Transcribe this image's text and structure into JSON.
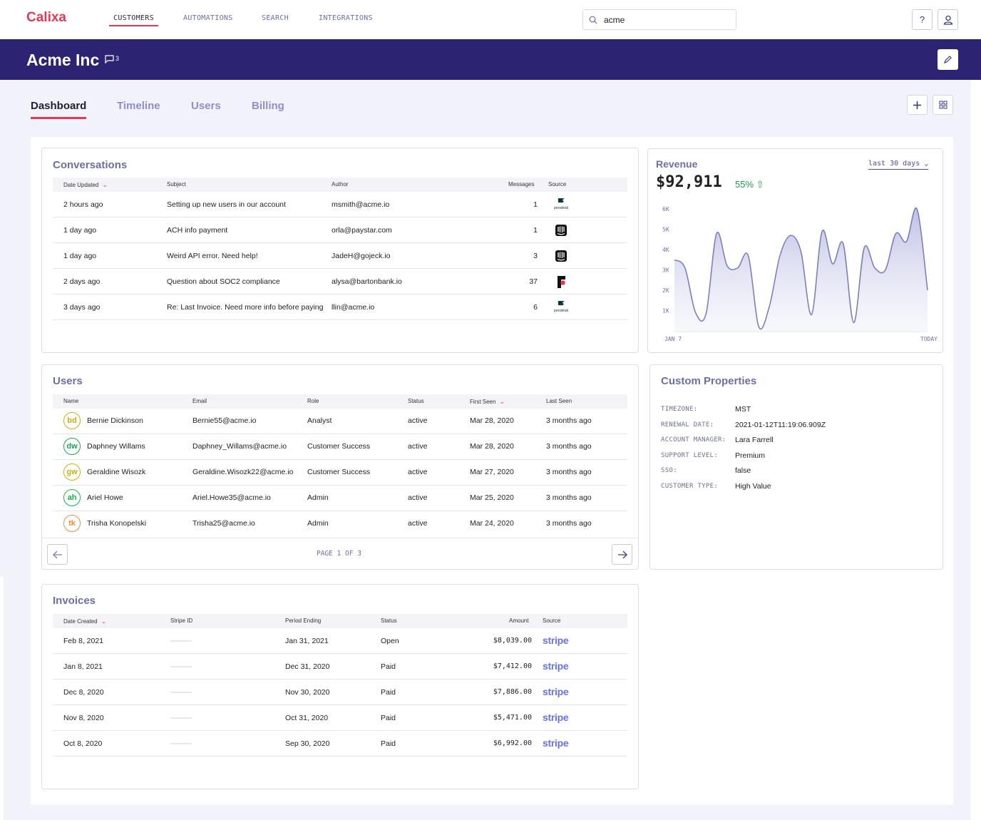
{
  "app": {
    "logo": "Calixa",
    "nav": [
      "CUSTOMERS",
      "AUTOMATIONS",
      "SEARCH",
      "INTEGRATIONS"
    ],
    "search_value": "acme",
    "help_label": "?"
  },
  "company": {
    "name": "Acme Inc",
    "comment_count": "3"
  },
  "tabs": [
    "Dashboard",
    "Timeline",
    "Users",
    "Billing"
  ],
  "conversations": {
    "title": "Conversations",
    "headers": [
      "Date Updated",
      "Subject",
      "Author",
      "Messages",
      "Source"
    ],
    "rows": [
      {
        "date": "2 hours ago",
        "subject": "Setting up new users in our account",
        "author": "msmith@acme.io",
        "messages": "1",
        "source": "zendesk"
      },
      {
        "date": "1 day ago",
        "subject": "ACH info payment",
        "author": "orla@paystar.com",
        "messages": "1",
        "source": "intercom"
      },
      {
        "date": "1 day ago",
        "subject": "Weird API error. Need help!",
        "author": "JadeH@gojeck.io",
        "messages": "3",
        "source": "intercom"
      },
      {
        "date": "2 days ago",
        "subject": "Question about SOC2 compliance",
        "author": "alysa@bartonbank.io",
        "messages": "37",
        "source": "front"
      },
      {
        "date": "3 days ago",
        "subject": "Re: Last Invoice. Need more info before paying",
        "author": "llin@acme.io",
        "messages": "6",
        "source": "zendesk"
      }
    ],
    "zendesk_label": "zendesk"
  },
  "revenue": {
    "title": "Revenue",
    "range": "last 30 days",
    "total": "$92,911",
    "change": "55%"
  },
  "chart_data": {
    "type": "area",
    "x_start_label": "JAN 7",
    "x_end_label": "TODAY",
    "yticks": [
      "6K",
      "5K",
      "4K",
      "3K",
      "2K",
      "1K"
    ],
    "ylim": [
      0,
      6500
    ],
    "values": [
      3500,
      3100,
      900,
      850,
      4800,
      3200,
      3100,
      3700,
      200,
      1200,
      3700,
      4700,
      3900,
      800,
      4900,
      3300,
      4300,
      400,
      4100,
      3100,
      3000,
      4800,
      4400,
      6000,
      2000
    ],
    "grid": false,
    "color": "#7c7fc0"
  },
  "users": {
    "title": "Users",
    "headers": [
      "Name",
      "Email",
      "Role",
      "Status",
      "First Seen",
      "Last Seen"
    ],
    "rows": [
      {
        "initials": "bd",
        "name": "Bernie Dickinson",
        "email": "Bernie55@acme.io",
        "role": "Analyst",
        "status": "active",
        "first_seen": "Mar 28, 2020",
        "last_seen": "3 months ago",
        "color": "#d8a80c"
      },
      {
        "initials": "dw",
        "name": "Daphney Willams",
        "email": "Daphney_Willams@acme.io",
        "role": "Customer Success",
        "status": "active",
        "first_seen": "Mar 28, 2020",
        "last_seen": "3 months ago",
        "color": "#1aa352"
      },
      {
        "initials": "gw",
        "name": "Geraldine Wisozk",
        "email": "Geraldine.Wisozk22@acme.io",
        "role": "Customer Success",
        "status": "active",
        "first_seen": "Mar 27, 2020",
        "last_seen": "3 months ago",
        "color": "#c8b00a"
      },
      {
        "initials": "ah",
        "name": "Ariel Howe",
        "email": "Ariel.Howe35@acme.io",
        "role": "Admin",
        "status": "active",
        "first_seen": "Mar 25, 2020",
        "last_seen": "3 months ago",
        "color": "#17b34a"
      },
      {
        "initials": "tk",
        "name": "Trisha Konopelski",
        "email": "Trisha25@acme.io",
        "role": "Admin",
        "status": "active",
        "first_seen": "Mar 24, 2020",
        "last_seen": "3 months ago",
        "color": "#f08a3c"
      }
    ],
    "page_label": "PAGE 1 OF 3"
  },
  "custom_properties": {
    "title": "Custom Properties",
    "items": [
      {
        "label": "TIMEZONE:",
        "value": "MST"
      },
      {
        "label": "RENEWAL DATE:",
        "value": "2021-01-12T11:19:06.909Z"
      },
      {
        "label": "ACCOUNT MANAGER:",
        "value": "Lara Farrell"
      },
      {
        "label": "SUPPORT LEVEL:",
        "value": "Premium"
      },
      {
        "label": "SSO:",
        "value": "false"
      },
      {
        "label": "CUSTOMER TYPE:",
        "value": "High Value"
      }
    ]
  },
  "invoices": {
    "title": "Invoices",
    "headers": [
      "Date Created",
      "Stripe ID",
      "Period Ending",
      "Status",
      "Amount",
      "Source"
    ],
    "rows": [
      {
        "date": "Feb 8, 2021",
        "period_end": "Jan 31, 2021",
        "status": "Open",
        "amount": "$8,039.00",
        "source": "stripe"
      },
      {
        "date": "Jan 8, 2021",
        "period_end": "Dec 31, 2020",
        "status": "Paid",
        "amount": "$7,412.00",
        "source": "stripe"
      },
      {
        "date": "Dec 8, 2020",
        "period_end": "Nov 30, 2020",
        "status": "Paid",
        "amount": "$7,886.00",
        "source": "stripe"
      },
      {
        "date": "Nov 8, 2020",
        "period_end": "Oct 31, 2020",
        "status": "Paid",
        "amount": "$5,471.00",
        "source": "stripe"
      },
      {
        "date": "Oct 8, 2020",
        "period_end": "Sep 30, 2020",
        "status": "Paid",
        "amount": "$6,992.00",
        "source": "stripe"
      }
    ]
  }
}
